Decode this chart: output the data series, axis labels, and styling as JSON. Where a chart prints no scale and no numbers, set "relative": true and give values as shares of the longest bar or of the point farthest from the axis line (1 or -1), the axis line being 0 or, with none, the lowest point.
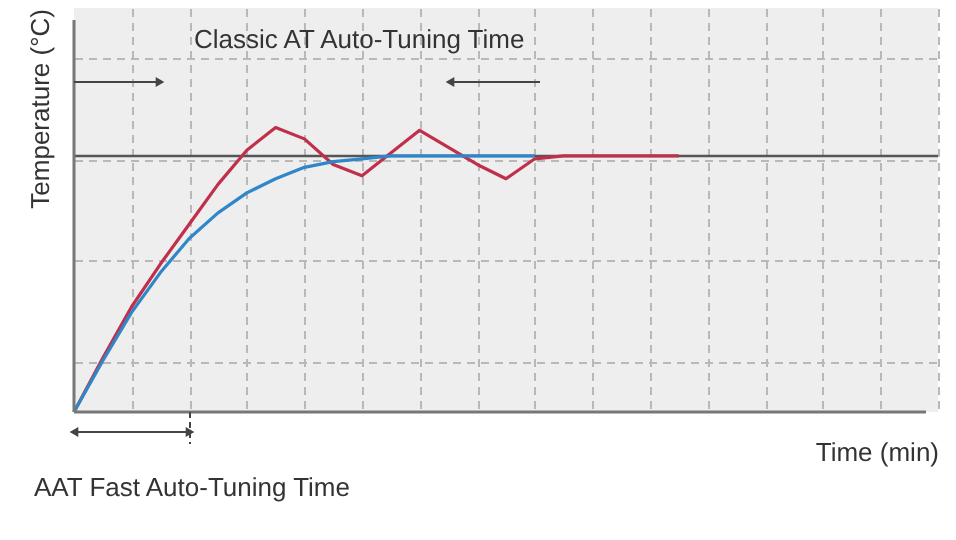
{
  "chart_data": {
    "type": "line",
    "relative": true,
    "grid": true,
    "tick_labels": false,
    "xlabel": "Time (min)",
    "ylabel": "Temperature (°C)",
    "categories": [
      null,
      null,
      null,
      null,
      null,
      null,
      null,
      null,
      null,
      null,
      null,
      null,
      null,
      null,
      null,
      null,
      null,
      null,
      null,
      null,
      null,
      null
    ],
    "series": [
      {
        "color": "#c0304a",
        "values": [
          0,
          0.19,
          0.37,
          0.52,
          0.66,
          0.8,
          0.92,
          1.0,
          0.96,
          0.87,
          0.83,
          0.91,
          0.99,
          0.93,
          0.87,
          0.82,
          0.89,
          0.9,
          0.9,
          0.9,
          0.9,
          0.9
        ]
      },
      {
        "color": "#2f86c8",
        "values": [
          0,
          0.18,
          0.35,
          0.49,
          0.61,
          0.7,
          0.77,
          0.82,
          0.86,
          0.88,
          0.89,
          0.9,
          0.9,
          0.9,
          0.9,
          0.9,
          0.9,
          null,
          null,
          null,
          null,
          null
        ]
      }
    ],
    "ref_lines": [
      {
        "axis": "y",
        "value": 0.9,
        "color": "#555555"
      }
    ],
    "annotations": [
      "Classic AT Auto-Tuning Time",
      "AAT Fast Auto-Tuning Time"
    ]
  }
}
